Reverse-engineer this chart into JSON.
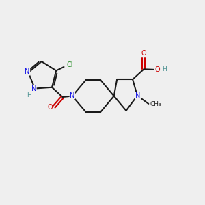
{
  "bg_color": "#efefef",
  "bond_color": "#1a1a1a",
  "N_color": "#1414e6",
  "O_color": "#cc0000",
  "Cl_color": "#228B22",
  "H_color": "#4a9090",
  "line_width": 1.5,
  "font_size": 7.0,
  "figsize": [
    3.0,
    3.0
  ],
  "dpi": 100,
  "xlim": [
    0,
    10
  ],
  "ylim": [
    0,
    10
  ]
}
